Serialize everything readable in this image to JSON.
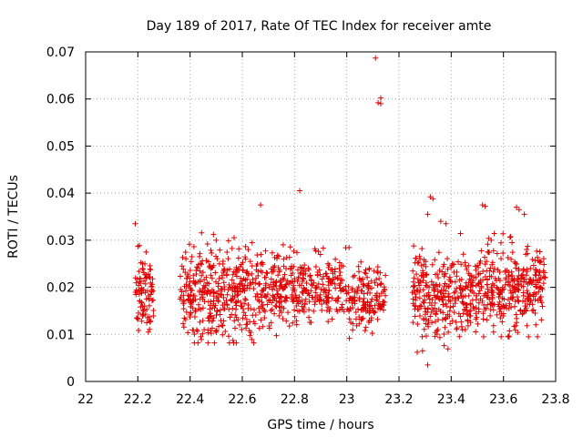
{
  "chart_data": {
    "type": "scatter",
    "title": "Day 189 of 2017, Rate Of TEC Index for receiver amte",
    "xlabel": "GPS time / hours",
    "ylabel": "ROTI / TECUs",
    "xlim": [
      22,
      23.8
    ],
    "ylim": [
      0,
      0.07
    ],
    "x_ticks": [
      "22",
      "22.2",
      "22.4",
      "22.6",
      "22.8",
      "23",
      "23.2",
      "23.4",
      "23.6",
      "23.8"
    ],
    "y_ticks": [
      "0",
      "0.01",
      "0.02",
      "0.03",
      "0.04",
      "0.05",
      "0.06",
      "0.07"
    ],
    "grid": true,
    "marker": "+",
    "marker_color": "#e00000",
    "series": [
      {
        "name": "",
        "segments": [
          {
            "x_start": 22.19,
            "x_end": 22.26,
            "y_min": 0.0105,
            "y_max": 0.0335,
            "center": 0.019,
            "count": 90
          },
          {
            "x_start": 22.36,
            "x_end": 22.68,
            "y_min": 0.0082,
            "y_max": 0.0375,
            "center": 0.019,
            "count": 400
          },
          {
            "x_start": 22.68,
            "x_end": 23.0,
            "y_min": 0.0095,
            "y_max": 0.0335,
            "center": 0.02,
            "count": 330
          },
          {
            "x_start": 23.0,
            "x_end": 23.15,
            "y_min": 0.009,
            "y_max": 0.031,
            "center": 0.018,
            "count": 150
          },
          {
            "x_start": 23.25,
            "x_end": 23.5,
            "y_min": 0.006,
            "y_max": 0.034,
            "center": 0.018,
            "count": 300
          },
          {
            "x_start": 23.5,
            "x_end": 23.76,
            "y_min": 0.0095,
            "y_max": 0.037,
            "center": 0.02,
            "count": 330
          }
        ],
        "outliers": [
          [
            22.82,
            0.0405
          ],
          [
            22.67,
            0.0375
          ],
          [
            23.11,
            0.0687
          ],
          [
            23.12,
            0.0592
          ],
          [
            23.13,
            0.0602
          ],
          [
            23.13,
            0.059
          ],
          [
            23.32,
            0.0392
          ],
          [
            23.33,
            0.0388
          ],
          [
            23.31,
            0.0355
          ],
          [
            23.36,
            0.034
          ],
          [
            23.38,
            0.0335
          ],
          [
            23.52,
            0.0375
          ],
          [
            23.53,
            0.0372
          ],
          [
            23.65,
            0.037
          ],
          [
            23.66,
            0.0365
          ],
          [
            23.68,
            0.0355
          ],
          [
            23.29,
            0.0065
          ],
          [
            23.27,
            0.0062
          ],
          [
            23.31,
            0.0035
          ],
          [
            22.19,
            0.0335
          ],
          [
            22.43,
            0.0082
          ],
          [
            22.5,
            0.03
          ]
        ]
      }
    ]
  }
}
